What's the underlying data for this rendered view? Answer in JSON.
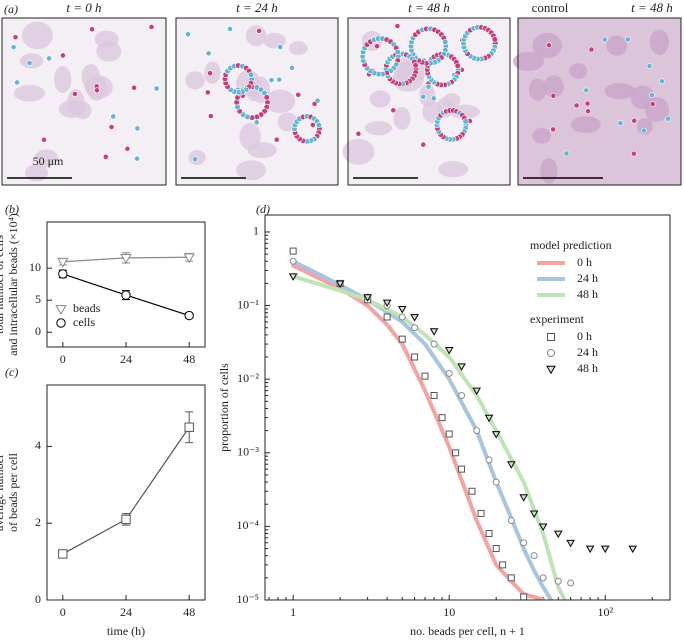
{
  "panel_a": {
    "label": "(a)",
    "titles": [
      "t = 0 h",
      "t = 24 h",
      "t = 48 h",
      "control",
      "t = 48 h"
    ],
    "scale_bar": "50 μm"
  },
  "chart_data": [
    {
      "type": "line",
      "panel": "(b)",
      "ylabel": [
        "total number of cells",
        "and intracellular beads (×10⁴)"
      ],
      "x": [
        0,
        24,
        48
      ],
      "xlim": [
        -6,
        54
      ],
      "xticks": [
        0,
        24,
        48
      ],
      "ylim": [
        -2.3,
        17.2
      ],
      "yticks": [
        0,
        5,
        10
      ],
      "legend": "lower left",
      "series": [
        {
          "name": "beads",
          "color": "#888888",
          "marker": "triangle",
          "fill": "#ffffff",
          "line_width": 1.2,
          "values": [
            11,
            11.6,
            11.7
          ],
          "errors": [
            0.5,
            0.8,
            0.6
          ]
        },
        {
          "name": "cells",
          "color": "#000000",
          "marker": "circle",
          "fill": "#ffffff",
          "line_width": 1.2,
          "values": [
            9.1,
            5.8,
            2.6
          ],
          "errors": [
            0.6,
            0.7,
            0.4
          ]
        }
      ]
    },
    {
      "type": "line",
      "panel": "(c)",
      "ylabel": [
        "average number",
        "of beads per cell"
      ],
      "xlabel": "time (h)",
      "x": [
        0,
        24,
        48
      ],
      "xlim": [
        -6,
        54
      ],
      "xticks": [
        0,
        24,
        48
      ],
      "ylim": [
        0,
        5.6
      ],
      "yticks": [
        0,
        2,
        4
      ],
      "series": [
        {
          "color": "#555555",
          "marker": "square",
          "fill": "#ffffff",
          "line_width": 1.2,
          "values": [
            1.2,
            2.1,
            4.5
          ],
          "errors": [
            0.1,
            0.15,
            0.4
          ]
        }
      ]
    },
    {
      "type": "loglog",
      "panel": "(d)",
      "ylabel": "proportion of cells",
      "xlabel": "no. beads per cell, n + 1",
      "xlim": [
        0.66,
        260
      ],
      "xticks": [
        1,
        10,
        {
          "value": 100,
          "label": "10²"
        }
      ],
      "ylim": [
        1e-05,
        1.7
      ],
      "yticks": [
        {
          "value": 1e-05,
          "label": "10⁻⁵"
        },
        {
          "value": 0.0001,
          "label": "10⁻⁴"
        },
        {
          "value": 0.001,
          "label": "10⁻³"
        },
        {
          "value": 0.01,
          "label": "10⁻²"
        },
        {
          "value": 0.1,
          "label": "10⁻¹"
        },
        1
      ],
      "model": {
        "title": "model prediction",
        "series": [
          {
            "name": "0 h",
            "color": "#f4a3a3",
            "line_width": 4,
            "x": [
              1,
              2,
              3,
              4,
              5,
              7,
              10,
              15,
              20,
              25,
              30,
              35,
              40
            ],
            "values": [
              0.35,
              0.17,
              0.1,
              0.055,
              0.03,
              0.007,
              0.0012,
              0.00012,
              3e-05,
              1.8e-05,
              1.2e-05,
              1.1e-05,
              1e-05
            ]
          },
          {
            "name": "24 h",
            "color": "#a9c4de",
            "line_width": 4,
            "x": [
              1,
              2,
              3,
              5,
              7,
              10,
              15,
              20,
              25,
              30,
              35,
              40,
              45
            ],
            "values": [
              0.4,
              0.19,
              0.12,
              0.06,
              0.03,
              0.01,
              0.002,
              0.0004,
              0.00013,
              5e-05,
              2.5e-05,
              1.5e-05,
              1e-05
            ]
          },
          {
            "name": "48 h",
            "color": "#bfe3b4",
            "line_width": 4,
            "x": [
              1,
              2,
              3,
              5,
              7,
              10,
              15,
              20,
              30,
              40,
              50,
              55
            ],
            "values": [
              0.25,
              0.16,
              0.12,
              0.07,
              0.04,
              0.02,
              0.006,
              0.002,
              0.0004,
              8e-05,
              1.5e-05,
              1e-05
            ]
          }
        ]
      },
      "experiment": {
        "title": "experiment",
        "series": [
          {
            "name": "0 h",
            "color": "#555555",
            "marker": "square",
            "fill": "#ffffff",
            "x": [
              1,
              2,
              3,
              4,
              5,
              6,
              7,
              8,
              9,
              10,
              11,
              12,
              14,
              16,
              18,
              20,
              22,
              25,
              30
            ],
            "values": [
              0.55,
              0.2,
              0.12,
              0.07,
              0.035,
              0.02,
              0.011,
              0.006,
              0.003,
              0.0018,
              0.001,
              0.0006,
              0.0003,
              0.00015,
              8e-05,
              5e-05,
              3e-05,
              2e-05,
              1.1e-05
            ]
          },
          {
            "name": "24 h",
            "color": "#888888",
            "marker": "circle",
            "fill": "#ffffff",
            "x": [
              1,
              2,
              3,
              4,
              5,
              6,
              8,
              10,
              12,
              15,
              18,
              20,
              25,
              30,
              35,
              40,
              50,
              60
            ],
            "values": [
              0.4,
              0.2,
              0.13,
              0.1,
              0.07,
              0.05,
              0.03,
              0.012,
              0.006,
              0.002,
              0.0008,
              0.0004,
              0.00012,
              6e-05,
              4e-05,
              2e-05,
              1.8e-05,
              1.7e-05
            ]
          },
          {
            "name": "48 h",
            "color": "#000000",
            "marker": "triangle",
            "fill": "#cfe8c4",
            "x": [
              1,
              2,
              3,
              4,
              5,
              6,
              8,
              10,
              12,
              15,
              18,
              20,
              25,
              30,
              35,
              40,
              50,
              60,
              80,
              100,
              150
            ],
            "values": [
              0.25,
              0.2,
              0.13,
              0.11,
              0.09,
              0.07,
              0.045,
              0.025,
              0.015,
              0.007,
              0.003,
              0.0018,
              0.0007,
              0.00025,
              0.00015,
              0.0001,
              8e-05,
              6e-05,
              5e-05,
              5e-05,
              5e-05
            ]
          }
        ]
      }
    }
  ]
}
